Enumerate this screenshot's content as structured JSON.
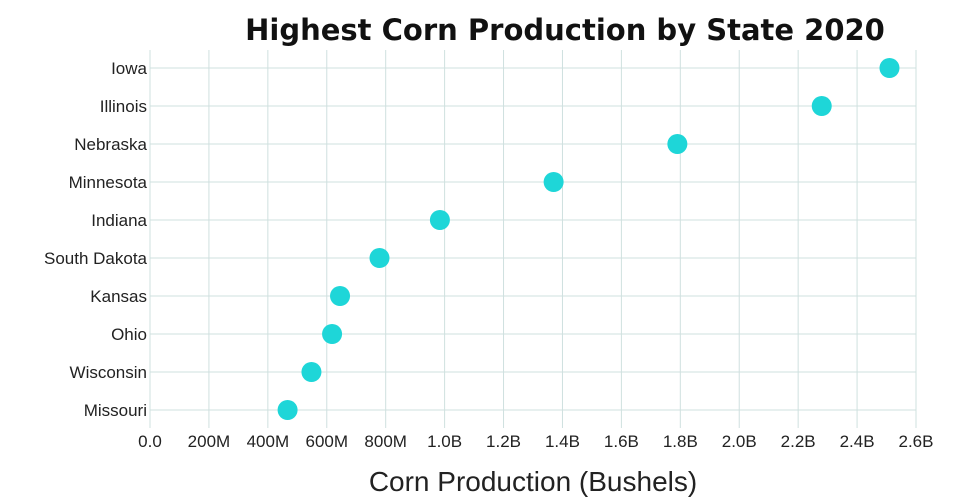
{
  "chart_data": {
    "type": "scatter",
    "title": "Highest Corn Production by State 2020",
    "xlabel": "Corn Production (Bushels)",
    "ylabel": "",
    "xlim": [
      0,
      2600000000
    ],
    "x_ticks": [
      0,
      200000000,
      400000000,
      600000000,
      800000000,
      1000000000,
      1200000000,
      1400000000,
      1600000000,
      1800000000,
      2000000000,
      2200000000,
      2400000000,
      2600000000
    ],
    "x_tick_labels": [
      "0.0",
      "200M",
      "400M",
      "600M",
      "800M",
      "1.0B",
      "1.2B",
      "1.4B",
      "1.6B",
      "1.8B",
      "2.0B",
      "2.2B",
      "2.4B",
      "2.6B"
    ],
    "categories": [
      "Iowa",
      "Illinois",
      "Nebraska",
      "Minnesota",
      "Indiana",
      "South Dakota",
      "Kansas",
      "Ohio",
      "Wisconsin",
      "Missouri"
    ],
    "values": [
      2510000000,
      2280000000,
      1790000000,
      1370000000,
      984000000,
      779000000,
      645000000,
      618000000,
      548000000,
      467000000
    ],
    "marker_color": "#1ed6d8",
    "grid": true
  }
}
